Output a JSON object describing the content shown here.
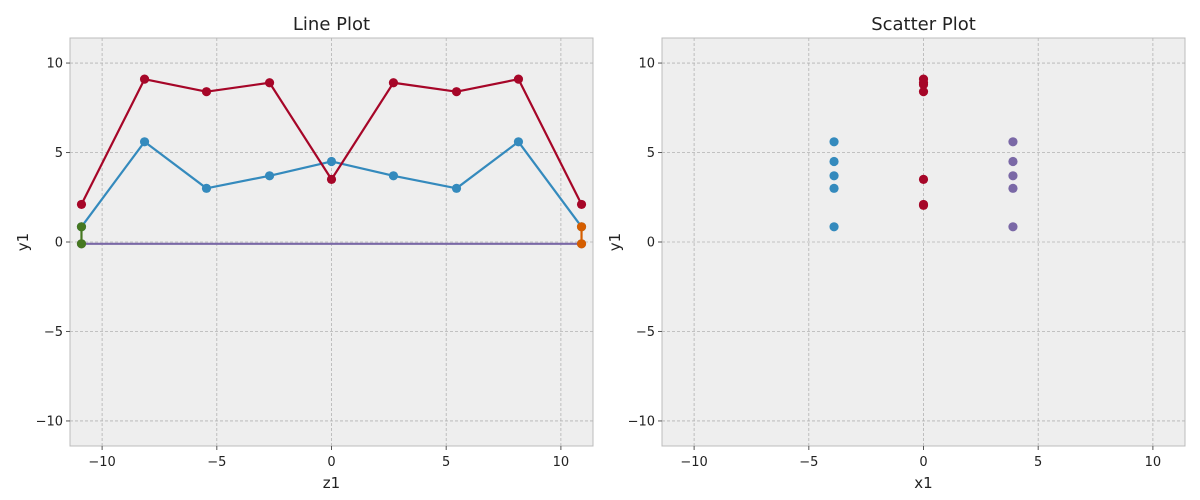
{
  "chart_data": [
    {
      "type": "line",
      "title": "Line Plot",
      "xlabel": "z1",
      "ylabel": "y1",
      "xlim": [
        -11.4,
        11.4
      ],
      "ylim": [
        -11.4,
        11.4
      ],
      "xticks": [
        -10,
        -5,
        0,
        5,
        10
      ],
      "yticks": [
        -10,
        -5,
        0,
        5,
        10
      ],
      "xtick_labels": [
        "−10",
        "−5",
        "0",
        "5",
        "10"
      ],
      "ytick_labels": [
        "−10",
        "−5",
        "0",
        "5",
        "10"
      ],
      "grid": true,
      "series": [
        {
          "color": "#348ABD",
          "x": [
            -10.9,
            -8.15,
            -5.45,
            -2.7,
            0,
            2.7,
            5.45,
            8.15,
            10.9
          ],
          "y": [
            0.85,
            5.6,
            3.0,
            3.7,
            4.5,
            3.7,
            3.0,
            5.6,
            0.85
          ]
        },
        {
          "color": "#A60628",
          "x": [
            -10.9,
            -8.15,
            -5.45,
            -2.7,
            0,
            2.7,
            5.45,
            8.15,
            10.9
          ],
          "y": [
            2.1,
            9.1,
            8.4,
            8.9,
            3.5,
            8.9,
            8.4,
            9.1,
            2.1
          ]
        },
        {
          "color": "#7A68A6",
          "x": [
            -10.9,
            10.9
          ],
          "y": [
            -0.1,
            -0.1
          ]
        },
        {
          "color": "#467821",
          "x": [
            -10.9,
            -10.9
          ],
          "y": [
            0.85,
            -0.1
          ]
        },
        {
          "color": "#D55E00",
          "x": [
            10.9,
            10.9
          ],
          "y": [
            0.85,
            -0.1
          ]
        }
      ]
    },
    {
      "type": "scatter",
      "title": "Scatter Plot",
      "xlabel": "x1",
      "ylabel": "y1",
      "xlim": [
        -11.4,
        11.4
      ],
      "ylim": [
        -11.4,
        11.4
      ],
      "xticks": [
        -10,
        -5,
        0,
        5,
        10
      ],
      "yticks": [
        -10,
        -5,
        0,
        5,
        10
      ],
      "xtick_labels": [
        "−10",
        "−5",
        "0",
        "5",
        "10"
      ],
      "ytick_labels": [
        "−10",
        "−5",
        "0",
        "5",
        "10"
      ],
      "grid": true,
      "series": [
        {
          "color": "#348ABD",
          "x": [
            -3.9,
            -3.9,
            -3.9,
            -3.9,
            -3.9
          ],
          "y": [
            5.6,
            4.5,
            3.7,
            3.0,
            0.85
          ]
        },
        {
          "color": "#A60628",
          "x": [
            0,
            0,
            0,
            0,
            0,
            0,
            0
          ],
          "y": [
            9.1,
            8.9,
            8.8,
            8.4,
            3.5,
            2.1,
            2.05
          ]
        },
        {
          "color": "#7A68A6",
          "x": [
            3.9,
            3.9,
            3.9,
            3.9,
            3.9
          ],
          "y": [
            5.6,
            4.5,
            3.7,
            3.0,
            0.85
          ]
        }
      ]
    }
  ]
}
